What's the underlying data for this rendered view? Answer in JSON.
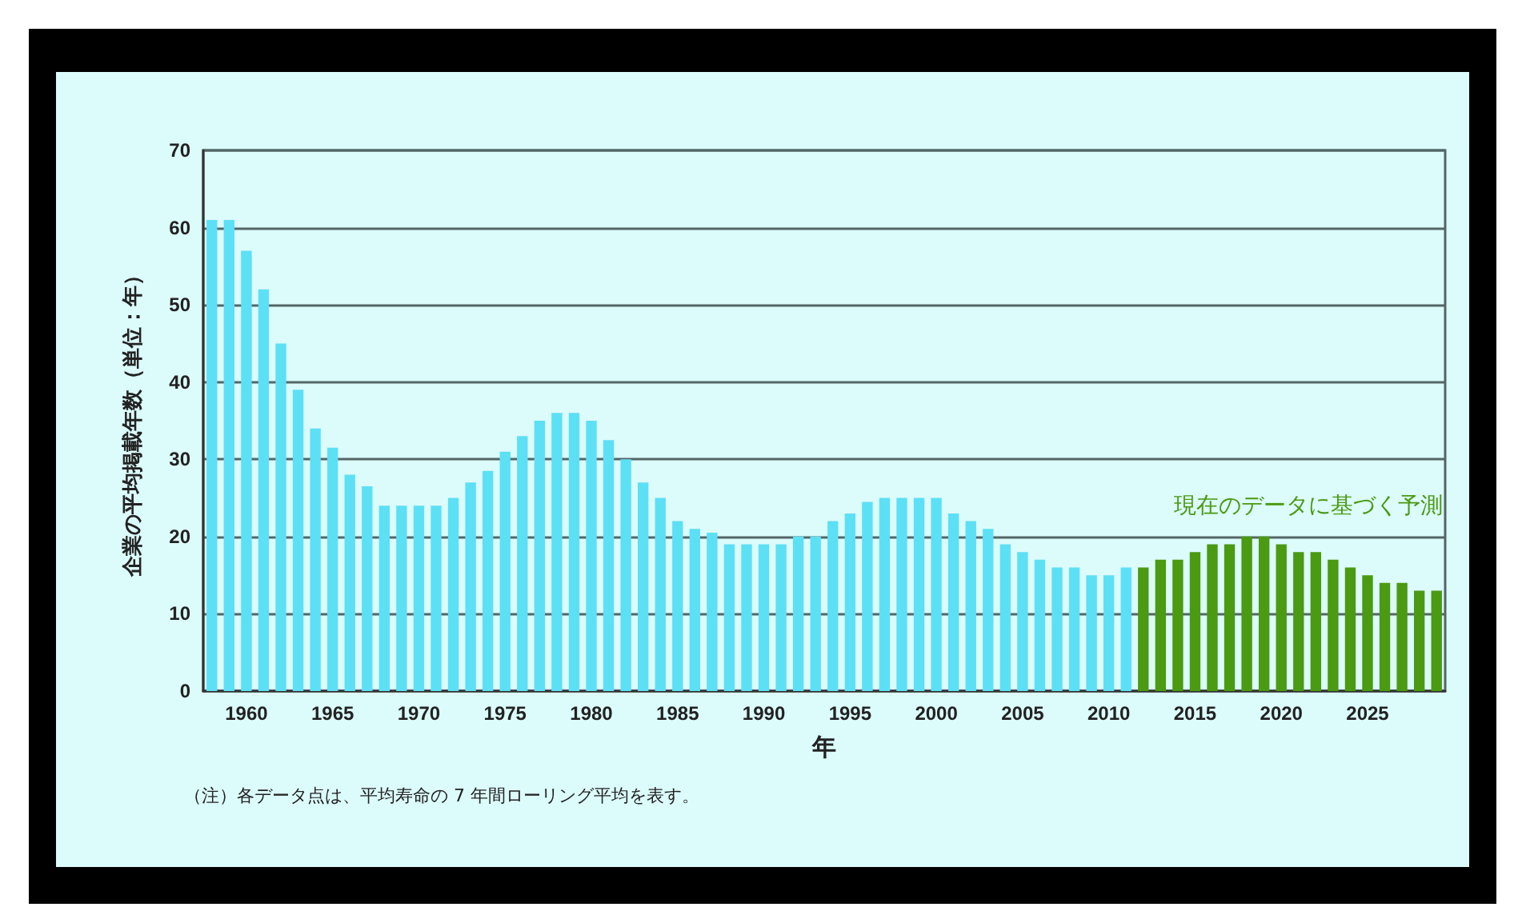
{
  "chart_data": {
    "type": "bar",
    "xlabel": "年",
    "ylabel": "企業の平均掲載年数（単位：年）",
    "annotations": [
      "（注）各データ点は、平均寿命の 7 年間ローリング平均を表す。"
    ],
    "categories": [
      null,
      null,
      "1960",
      null,
      null,
      null,
      null,
      "1965",
      null,
      null,
      null,
      null,
      "1970",
      null,
      null,
      null,
      null,
      "1975",
      null,
      null,
      null,
      null,
      "1980",
      null,
      null,
      null,
      null,
      "1985",
      null,
      null,
      null,
      null,
      "1990",
      null,
      null,
      null,
      null,
      "1995",
      null,
      null,
      null,
      null,
      "2000",
      null,
      null,
      null,
      null,
      "2005",
      null,
      null,
      null,
      null,
      "2010",
      null,
      null,
      null,
      null,
      "2015",
      null,
      null,
      null,
      null,
      "2020",
      null,
      null,
      null,
      null,
      "2025",
      null,
      null,
      null,
      null
    ],
    "series": [
      {
        "color": "#5ce0f5",
        "values": [
          61,
          61,
          57,
          52,
          45,
          39,
          34,
          31.5,
          28,
          26.5,
          24,
          24,
          24,
          24,
          25,
          27,
          28.5,
          31,
          33,
          35,
          36,
          36,
          35,
          32.5,
          30,
          27,
          25,
          22,
          21,
          20.5,
          19,
          19,
          19,
          19,
          20,
          20,
          22,
          23,
          24.5,
          25,
          25,
          25,
          25,
          23,
          22,
          21,
          19,
          18,
          17,
          16,
          16,
          15,
          15,
          16,
          null,
          null,
          null,
          null,
          null,
          null,
          null,
          null,
          null,
          null,
          null,
          null,
          null,
          null,
          null,
          null,
          null,
          null
        ]
      },
      {
        "name": "現在のデータに基づく予測",
        "color": "#4a9a12",
        "values": [
          null,
          null,
          null,
          null,
          null,
          null,
          null,
          null,
          null,
          null,
          null,
          null,
          null,
          null,
          null,
          null,
          null,
          null,
          null,
          null,
          null,
          null,
          null,
          null,
          null,
          null,
          null,
          null,
          null,
          null,
          null,
          null,
          null,
          null,
          null,
          null,
          null,
          null,
          null,
          null,
          null,
          null,
          null,
          null,
          null,
          null,
          null,
          null,
          null,
          null,
          null,
          null,
          null,
          null,
          16,
          17,
          17,
          18,
          19,
          19,
          20,
          20,
          19,
          18,
          18,
          17,
          16,
          15,
          14,
          14,
          13,
          13
        ]
      }
    ],
    "ylim": [
      0,
      70
    ],
    "yticks": [
      0,
      10,
      20,
      30,
      40,
      50,
      60,
      70
    ],
    "grid": "y",
    "legend": false
  }
}
